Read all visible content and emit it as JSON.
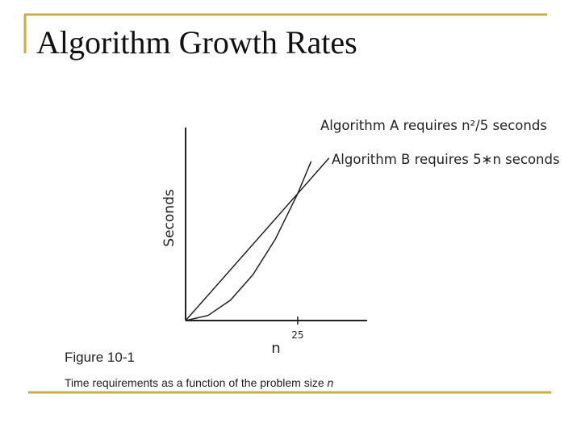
{
  "slide": {
    "title": "Algorithm Growth Rates"
  },
  "figure": {
    "label": "Figure 10-1",
    "caption": "Time requirements as a function of the problem size",
    "caption_var": "n"
  },
  "chart_data": {
    "type": "line",
    "x_label": "n",
    "y_label": "Seconds",
    "x": [
      0,
      5,
      10,
      15,
      20,
      25,
      28,
      32
    ],
    "series": [
      {
        "name": "Algorithm A requires n²/5 seconds",
        "color": "#222222",
        "values": [
          0,
          5,
          20,
          45,
          80,
          125,
          156.8,
          null
        ]
      },
      {
        "name": "Algorithm B requires 5∗n seconds",
        "color": "#222222",
        "values": [
          0,
          25,
          50,
          75,
          100,
          125,
          140,
          160
        ]
      }
    ],
    "xlim": [
      0,
      40.5
    ],
    "ylim": [
      0,
      190
    ],
    "xticks": [
      25
    ],
    "yticks": []
  }
}
